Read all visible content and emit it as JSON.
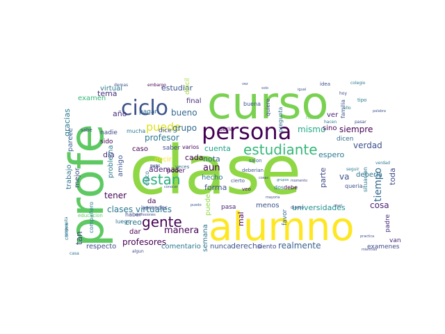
{
  "wordcloud": {
    "words": [
      {
        "text": "clase",
        "color": "#8fd744"
      },
      {
        "text": "curso",
        "color": "#7ad151"
      },
      {
        "text": "alumno",
        "color": "#fde725"
      },
      {
        "text": "profe",
        "color": "#5ec962"
      },
      {
        "text": "persona",
        "color": "#440154"
      },
      {
        "text": "ciclo",
        "color": "#3b528b"
      },
      {
        "text": "estudiante",
        "color": "#35b779"
      },
      {
        "text": "gente",
        "color": "#440154"
      },
      {
        "text": "estan",
        "color": "#29af7f"
      },
      {
        "text": "puede",
        "color": "#dde318"
      },
      {
        "text": "clases virtuales",
        "color": "#2a788e"
      },
      {
        "text": "profesores",
        "color": "#440154"
      },
      {
        "text": "tiempo",
        "color": "#31688e"
      },
      {
        "text": "universidades",
        "color": "#21918c"
      },
      {
        "text": "realmente",
        "color": "#355f8d"
      },
      {
        "text": "derecho",
        "color": "#3b528b"
      },
      {
        "text": "parece",
        "color": "#355f8d"
      },
      {
        "text": "gracias",
        "color": "#2a788e"
      },
      {
        "text": "trabajo",
        "color": "#2c728e"
      },
      {
        "text": "mejor",
        "color": "#3e4989"
      },
      {
        "text": "tan",
        "color": "#414487"
      },
      {
        "text": "tema",
        "color": "#46327e"
      },
      {
        "text": "año",
        "color": "#46327e"
      },
      {
        "text": "virtual",
        "color": "#2a788e"
      },
      {
        "text": "estudiar",
        "color": "#3b528b"
      },
      {
        "text": "final",
        "color": "#472d7b"
      },
      {
        "text": "bueno",
        "color": "#31688e"
      },
      {
        "text": "decir",
        "color": "#f4e61e"
      },
      {
        "text": "grupo",
        "color": "#31688e"
      },
      {
        "text": "cada",
        "color": "#440154"
      },
      {
        "text": "aun",
        "color": "#440154"
      },
      {
        "text": "hecho",
        "color": "#2c728e"
      },
      {
        "text": "nota",
        "color": "#31688e"
      },
      {
        "text": "cuenta",
        "color": "#20a386"
      },
      {
        "text": "mismo",
        "color": "#22a884"
      },
      {
        "text": "siempre",
        "color": "#440154"
      },
      {
        "text": "verdad",
        "color": "#3b528b"
      },
      {
        "text": "espero",
        "color": "#2a788e"
      },
      {
        "text": "parte",
        "color": "#3e4989"
      },
      {
        "text": "cosa",
        "color": "#481f70"
      },
      {
        "text": "menos",
        "color": "#3b528b"
      },
      {
        "text": "pueden",
        "color": "#8fd744"
      },
      {
        "text": "manera",
        "color": "#440154"
      },
      {
        "text": "ademas",
        "color": "#481f70"
      },
      {
        "text": "tener",
        "color": "#440154"
      },
      {
        "text": "creo",
        "color": "#2a788e"
      },
      {
        "text": "forma",
        "color": "#3b528b"
      },
      {
        "text": "ver",
        "color": "#481f70"
      },
      {
        "text": "sino",
        "color": "#440154"
      },
      {
        "text": "va",
        "color": "#3b528b"
      },
      {
        "text": "toda",
        "color": "#3e4989"
      },
      {
        "text": "deberia",
        "color": "#2c728e"
      },
      {
        "text": "profesor",
        "color": "#2a788e"
      },
      {
        "text": "caso",
        "color": "#440154"
      },
      {
        "text": "dia",
        "color": "#482878"
      },
      {
        "text": "problema",
        "color": "#2a788e"
      },
      {
        "text": "amigo",
        "color": "#3b528b"
      },
      {
        "text": "semana",
        "color": "#2c728e"
      },
      {
        "text": "nunca",
        "color": "#3b528b"
      },
      {
        "text": "comentario",
        "color": "#2a788e"
      },
      {
        "text": "respecto",
        "color": "#3e4989"
      },
      {
        "text": "examenes",
        "color": "#3e4989"
      },
      {
        "text": "mal",
        "color": "#440154"
      },
      {
        "text": "favor",
        "color": "#31688e"
      },
      {
        "text": "pasa",
        "color": "#481f70"
      },
      {
        "text": "dar",
        "color": "#440154"
      },
      {
        "text": "sido",
        "color": "#440154"
      },
      {
        "text": "saber",
        "color": "#3e4989"
      },
      {
        "text": "poder",
        "color": "#440154"
      },
      {
        "text": "dice",
        "color": "#3b528b"
      },
      {
        "text": "nadie",
        "color": "#3e4989"
      },
      {
        "text": "pagar",
        "color": "#31688e"
      },
      {
        "text": "seria",
        "color": "#440154"
      },
      {
        "text": "buena",
        "color": "#3b528b"
      },
      {
        "text": "quiere",
        "color": "#3e4989"
      },
      {
        "text": "pregunta",
        "color": "#2c728e"
      },
      {
        "text": "familia",
        "color": "#3b528b"
      },
      {
        "text": "dicen",
        "color": "#31688e"
      },
      {
        "text": "situacion",
        "color": "#2a788e"
      },
      {
        "text": "padre",
        "color": "#482878"
      },
      {
        "text": "van",
        "color": "#482878"
      },
      {
        "text": "chico",
        "color": "#2a788e"
      },
      {
        "text": "da",
        "color": "#440154"
      },
      {
        "text": "haber",
        "color": "#3e4989"
      },
      {
        "text": "compañero",
        "color": "#2a788e"
      },
      {
        "text": "examen",
        "color": "#35b779"
      },
      {
        "text": "siento",
        "color": "#3e4989"
      },
      {
        "text": "carrera",
        "color": "#2c728e"
      },
      {
        "text": "hasta",
        "color": "#6ccd5a"
      },
      {
        "text": "educacion",
        "color": "#5ec962"
      },
      {
        "text": "queria",
        "color": "#3b528b"
      },
      {
        "text": "dos",
        "color": "#2a788e"
      },
      {
        "text": "debe",
        "color": "#440154"
      },
      {
        "text": "dinero",
        "color": "#3e4989"
      },
      {
        "text": "mucha",
        "color": "#2a788e"
      },
      {
        "text": "luego",
        "color": "#2c728e"
      },
      {
        "text": "aprender",
        "color": "#3e4989"
      },
      {
        "text": "deberian",
        "color": "#3b528b"
      },
      {
        "text": "veces",
        "color": "#31688e"
      },
      {
        "text": "embargo",
        "color": "#440154"
      },
      {
        "text": "demas",
        "color": "#3b528b"
      },
      {
        "text": "varios",
        "color": "#440154"
      },
      {
        "text": "dificil",
        "color": "#a0da39"
      },
      {
        "text": "idea",
        "color": "#3b528b"
      },
      {
        "text": "colegio",
        "color": "#2a788e"
      },
      {
        "text": "salon",
        "color": "#31688e"
      },
      {
        "text": "cierto",
        "color": "#3b528b"
      },
      {
        "text": "algun",
        "color": "#3e4989"
      },
      {
        "text": "sabe",
        "color": "#3e4989"
      },
      {
        "text": "pues",
        "color": "#3e4989"
      },
      {
        "text": "veo",
        "color": "#440154"
      },
      {
        "text": "casa",
        "color": "#2c728e"
      },
      {
        "text": "tipo",
        "color": "#2a788e"
      },
      {
        "text": "seguir",
        "color": "#2a788e"
      },
      {
        "text": "hacen",
        "color": "#2a788e"
      },
      {
        "text": "confesiones",
        "color": "#3e4989"
      },
      {
        "text": "mayoria",
        "color": "#3b528b"
      },
      {
        "text": "pasar",
        "color": "#3e4989"
      },
      {
        "text": "pais",
        "color": "#3e4989"
      },
      {
        "text": "conocer",
        "color": "#3b528b"
      },
      {
        "text": "momento",
        "color": "#3e4989"
      },
      {
        "text": "practica",
        "color": "#3b528b"
      },
      {
        "text": "respuesta",
        "color": "#2a788e"
      },
      {
        "text": "puedo",
        "color": "#3b528b"
      },
      {
        "text": "ello",
        "color": "#2a788e"
      },
      {
        "text": "hoy",
        "color": "#3e4989"
      },
      {
        "text": "mientras",
        "color": "#3e4989"
      },
      {
        "text": "grupos",
        "color": "#2a788e"
      },
      {
        "text": "solo",
        "color": "#3b528b"
      },
      {
        "text": "vez",
        "color": "#3e4989"
      },
      {
        "text": "igual",
        "color": "#3e4989"
      },
      {
        "text": "palabra",
        "color": "#3b528b"
      },
      {
        "text": "cosas",
        "color": "#3e4989"
      },
      {
        "text": "nivel",
        "color": "#3e4989"
      },
      {
        "text": "verdad",
        "color": "#2a788e"
      }
    ]
  }
}
